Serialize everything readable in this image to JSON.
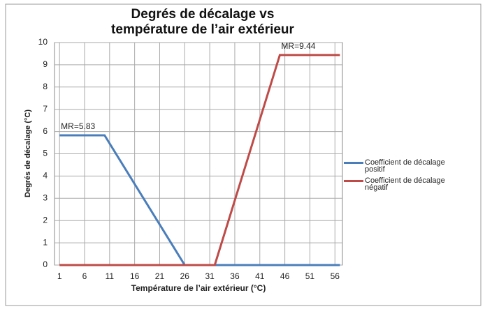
{
  "chart_data": {
    "type": "line",
    "title": "Degrés de décalage vs température de l’air extérieur",
    "x_label": "Température de l’air extérieur (°C)",
    "y_label": "Degrés de décalage (°C)",
    "series": [
      {
        "name": "Coefficient de décalage positif",
        "color": "#4a7ebb",
        "x": [
          1,
          10,
          26,
          57
        ],
        "values": [
          5.83,
          5.83,
          0,
          0
        ]
      },
      {
        "name": "Coefficient de décalage négatif",
        "color": "#be4b48",
        "x": [
          1,
          32,
          45,
          57
        ],
        "values": [
          0,
          0,
          9.44,
          9.44
        ]
      }
    ],
    "annotations": [
      {
        "text": "MR=5.83",
        "x": 1,
        "y": 5.83
      },
      {
        "text": "MR=9.44",
        "x": 45,
        "y": 9.44
      }
    ],
    "xlim": [
      0,
      57.5
    ],
    "ylim": [
      0,
      10
    ],
    "xticks": [
      1,
      6,
      11,
      16,
      21,
      26,
      31,
      36,
      41,
      46,
      51,
      56
    ],
    "yticks": [
      0,
      1,
      2,
      3,
      4,
      5,
      6,
      7,
      8,
      9,
      10
    ],
    "grid": true,
    "legend": "right"
  }
}
